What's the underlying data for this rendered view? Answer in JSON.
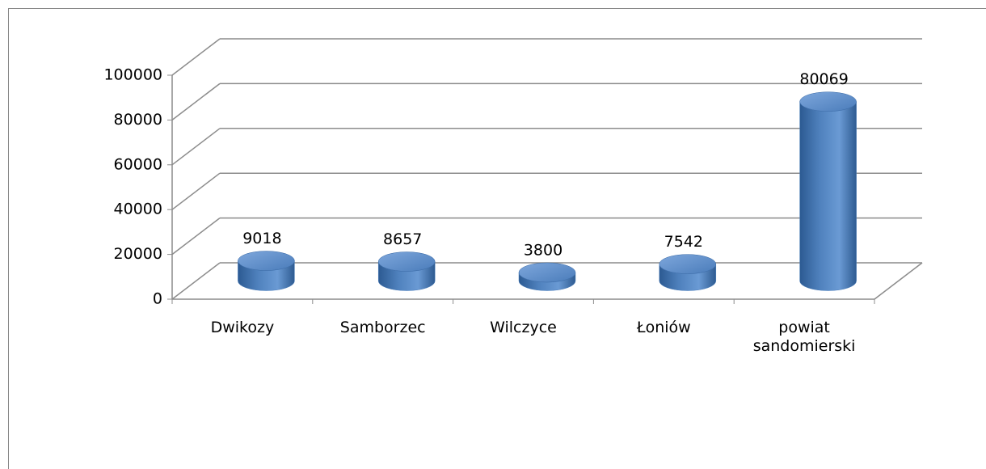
{
  "chart_data": {
    "type": "bar3d",
    "categories": [
      "Dwikozy",
      "Samborzec",
      "Wilczyce",
      "Łoniów",
      "powiat sandomierski"
    ],
    "values": [
      9018,
      8657,
      3800,
      7542,
      80069
    ],
    "color": "#4f81bd",
    "ylim": [
      0,
      100000
    ],
    "yticks": [
      0,
      20000,
      40000,
      60000,
      80000,
      100000
    ],
    "grid": true
  }
}
